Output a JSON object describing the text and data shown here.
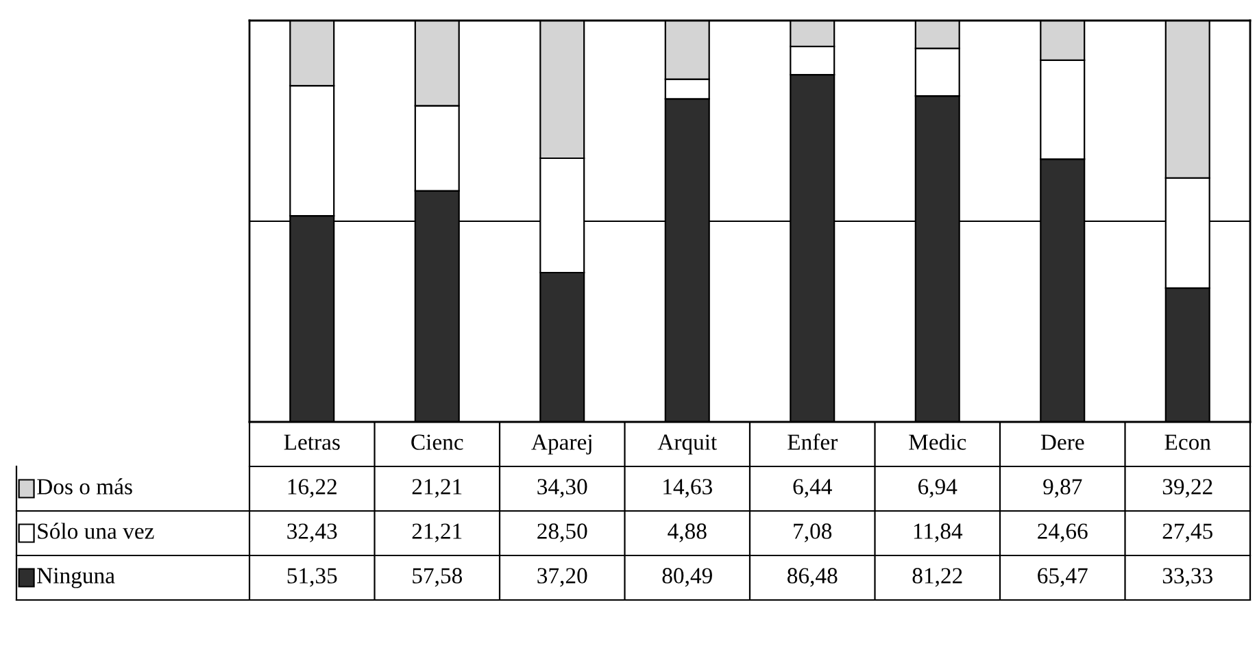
{
  "chart_data": {
    "type": "bar",
    "stacked": true,
    "categories": [
      "Letras",
      "Cienc",
      "Aparej",
      "Arquit",
      "Enfer",
      "Medic",
      "Dere",
      "Econ"
    ],
    "ylim": [
      0,
      100
    ],
    "ref_lines": [
      {
        "axis": "y",
        "value": 50
      }
    ],
    "tick_labels": "x",
    "legend": "bottom left",
    "series": [
      {
        "name": "Ninguna",
        "color": "#2e2e2e",
        "values": [
          51.35,
          57.58,
          37.2,
          80.49,
          86.48,
          81.22,
          65.47,
          33.33
        ],
        "value_labels": [
          "51,35",
          "57,58",
          "37,20",
          "80,49",
          "86,48",
          "81,22",
          "65,47",
          "33,33"
        ]
      },
      {
        "name": "Sólo una vez",
        "color": "#ffffff",
        "values": [
          32.43,
          21.21,
          28.5,
          4.88,
          7.08,
          11.84,
          24.66,
          27.45
        ],
        "value_labels": [
          "32,43",
          "21,21",
          "28,50",
          "4,88",
          "7,08",
          "11,84",
          "24,66",
          "27,45"
        ]
      },
      {
        "name": "Dos o más",
        "color": "#d4d4d4",
        "values": [
          16.22,
          21.21,
          34.3,
          14.63,
          6.44,
          6.94,
          9.87,
          39.22
        ],
        "value_labels": [
          "16,22",
          "21,21",
          "34,30",
          "14,63",
          "6,44",
          "6,94",
          "9,87",
          "39,22"
        ]
      }
    ]
  }
}
